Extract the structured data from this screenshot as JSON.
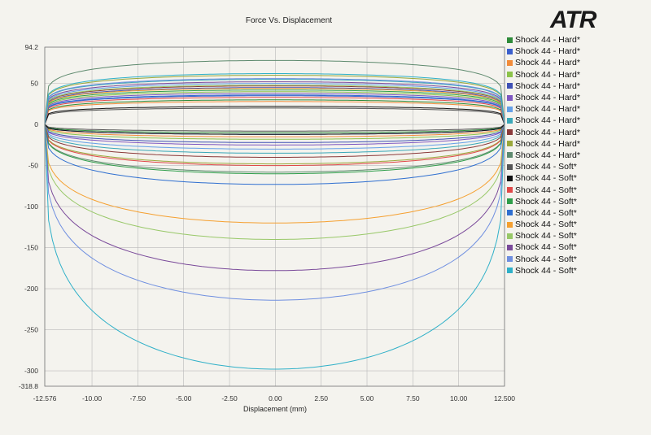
{
  "logo_text": "ATR",
  "chart_data": {
    "type": "line",
    "title": "Force Vs. Displacement",
    "xlabel": "Displacement (mm)",
    "ylabel": "",
    "xlim": [
      -12.576,
      12.5
    ],
    "ylim": [
      -318.8,
      94.2
    ],
    "x_ticks": [
      -12.576,
      -10.0,
      -7.5,
      -5.0,
      -2.5,
      0.0,
      2.5,
      5.0,
      7.5,
      10.0,
      12.5
    ],
    "x_tick_labels": [
      "-12.576",
      "-10.00",
      "-7.50",
      "-5.00",
      "-2.50",
      "0.00",
      "2.50",
      "5.00",
      "7.50",
      "10.00",
      "12.500"
    ],
    "y_ticks": [
      94.2,
      50,
      0,
      -50,
      -100,
      -150,
      -200,
      -250,
      -300,
      -318.8
    ],
    "y_tick_labels": [
      "94.2",
      "50",
      "0",
      "-50",
      "-100",
      "-150",
      "-200",
      "-250",
      "-300",
      "-318.8"
    ],
    "grid": true,
    "legend_position": "right",
    "series": [
      {
        "name": "Shock 44 - Hard*",
        "color": "#2e8b3a",
        "upper": 30,
        "lower": -10
      },
      {
        "name": "Shock 44 - Hard*",
        "color": "#3a5fcd",
        "upper": 35,
        "lower": -12
      },
      {
        "name": "Shock 44 - Hard*",
        "color": "#f28c3a",
        "upper": 28,
        "lower": -15
      },
      {
        "name": "Shock 44 - Hard*",
        "color": "#8cc34a",
        "upper": 40,
        "lower": -18
      },
      {
        "name": "Shock 44 - Hard*",
        "color": "#3f51b5",
        "upper": 45,
        "lower": -22
      },
      {
        "name": "Shock 44 - Hard*",
        "color": "#7e57c2",
        "upper": 38,
        "lower": -25
      },
      {
        "name": "Shock 44 - Hard*",
        "color": "#64a0e8",
        "upper": 50,
        "lower": -30
      },
      {
        "name": "Shock 44 - Hard*",
        "color": "#3aa8b8",
        "upper": 55,
        "lower": -35
      },
      {
        "name": "Shock 44 - Hard*",
        "color": "#8b3a3a",
        "upper": 47,
        "lower": -40
      },
      {
        "name": "Shock 44 - Hard*",
        "color": "#9aa83a",
        "upper": 60,
        "lower": -48
      },
      {
        "name": "Shock 44 - Hard*",
        "color": "#5e8a6e",
        "upper": 78,
        "lower": -58
      },
      {
        "name": "Shock 44 - Soft*",
        "color": "#555555",
        "upper": 20,
        "lower": -8
      },
      {
        "name": "Shock 44 - Soft*",
        "color": "#111111",
        "upper": 22,
        "lower": -12
      },
      {
        "name": "Shock 44 - Soft*",
        "color": "#e04848",
        "upper": 33,
        "lower": -50
      },
      {
        "name": "Shock 44 - Soft*",
        "color": "#2e9e4a",
        "upper": 42,
        "lower": -60
      },
      {
        "name": "Shock 44 - Soft*",
        "color": "#2f6fd0",
        "upper": 36,
        "lower": -73
      },
      {
        "name": "Shock 44 - Soft*",
        "color": "#f5a030",
        "upper": 44,
        "lower": -120
      },
      {
        "name": "Shock 44 - Soft*",
        "color": "#98c868",
        "upper": 48,
        "lower": -140
      },
      {
        "name": "Shock 44 - Soft*",
        "color": "#7a4a9a",
        "upper": 52,
        "lower": -178
      },
      {
        "name": "Shock 44 - Soft*",
        "color": "#6f8fe0",
        "upper": 56,
        "lower": -214
      },
      {
        "name": "Shock 44 - Soft*",
        "color": "#2fb0c8",
        "upper": 62,
        "lower": -298
      }
    ]
  }
}
